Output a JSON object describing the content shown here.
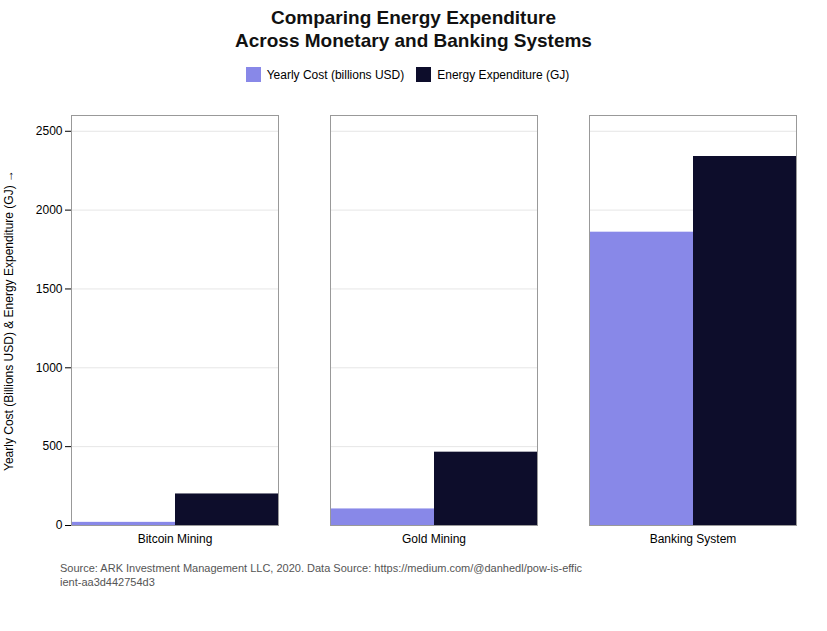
{
  "chart_data": {
    "type": "bar",
    "title": "Comparing Energy Expenditure",
    "subtitle": "Across Monetary and Banking Systems",
    "categories": [
      "Bitcoin Mining",
      "Gold Mining",
      "Banking System"
    ],
    "series": [
      {
        "name": "Yearly Cost (billions USD)",
        "color": "#8888e8",
        "values": [
          20,
          105,
          1860
        ]
      },
      {
        "name": "Energy Expenditure (GJ)",
        "color": "#0d0d2b",
        "values": [
          200,
          465,
          2340
        ]
      }
    ],
    "ylabel": "Yearly Cost (Billions USD) & Energy Expenditure (GJ)",
    "ylim": [
      0,
      2600
    ],
    "yticks": [
      0,
      500,
      1000,
      1500,
      2000,
      2500
    ],
    "grid": true,
    "legend": "top",
    "annotations": [
      "Source: ARK Investment Management LLC, 2020. Data Source: https://medium.com/@danhedl/pow-is-effic\nient-aa3d442754d3"
    ]
  }
}
